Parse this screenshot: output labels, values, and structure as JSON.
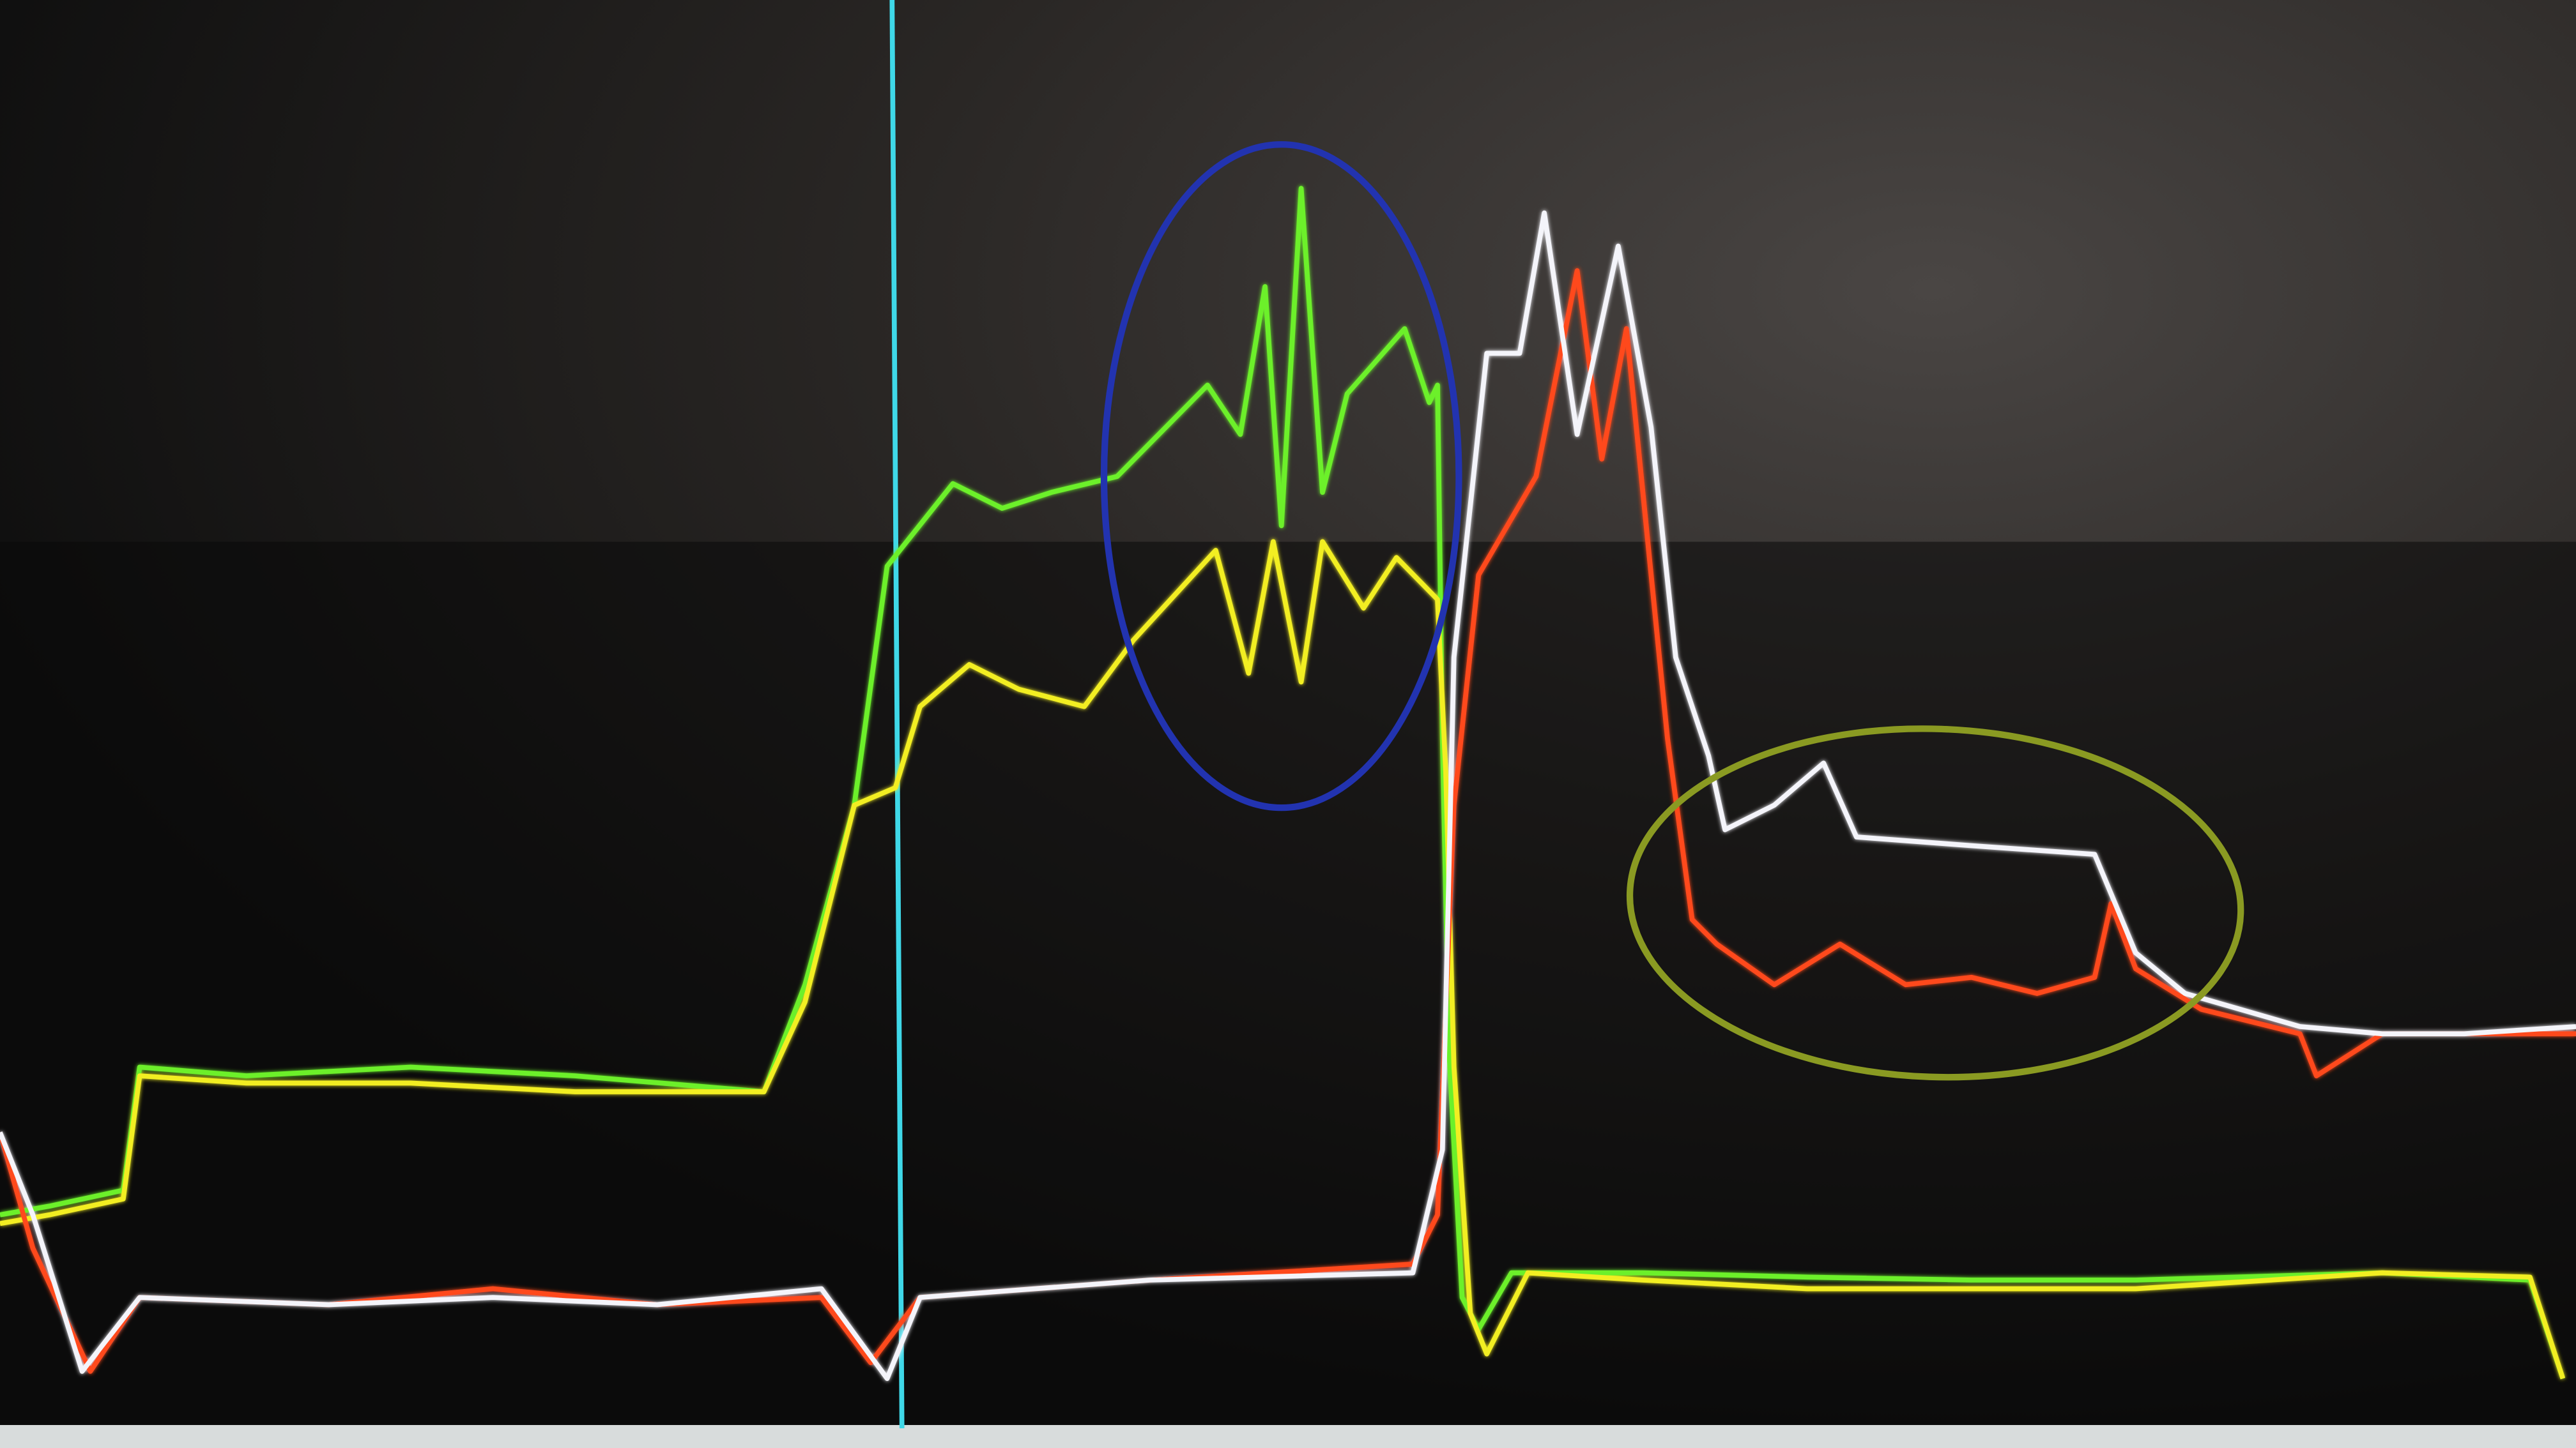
{
  "chart_data": {
    "type": "line",
    "xlim": [
      0,
      1568
    ],
    "ylim": [
      0,
      100
    ],
    "series": [
      {
        "name": "green",
        "color": "#6cf02a",
        "x": [
          0,
          30,
          75,
          85,
          150,
          250,
          350,
          465,
          490,
          520,
          540,
          580,
          610,
          640,
          680,
          735,
          755,
          770,
          780,
          792,
          805,
          820,
          855,
          870,
          875,
          878,
          882,
          890,
          900,
          920,
          1000,
          1100,
          1200,
          1300,
          1450,
          1540,
          1560
        ],
        "values": [
          16.1,
          16.7,
          17.8,
          26.3,
          25.7,
          26.3,
          25.7,
          24.6,
          32.0,
          44.4,
          60.9,
          66.6,
          64.9,
          66.0,
          67.1,
          73.4,
          70.0,
          80.2,
          63.7,
          87.0,
          66.0,
          72.8,
          77.3,
          72.2,
          73.4,
          49.0,
          27.4,
          10.4,
          8.2,
          12.1,
          12.1,
          11.8,
          11.6,
          11.6,
          12.1,
          11.6,
          4.8
        ]
      },
      {
        "name": "yellow",
        "color": "#f2ee22",
        "x": [
          0,
          30,
          75,
          85,
          150,
          250,
          350,
          465,
          490,
          520,
          545,
          560,
          590,
          620,
          660,
          690,
          740,
          760,
          775,
          792,
          805,
          830,
          850,
          875,
          880,
          885,
          895,
          905,
          930,
          1000,
          1100,
          1200,
          1300,
          1450,
          1540,
          1560
        ],
        "values": [
          15.5,
          16.1,
          17.2,
          25.7,
          25.2,
          25.2,
          24.6,
          24.6,
          30.8,
          44.4,
          45.6,
          51.2,
          54.1,
          52.4,
          51.2,
          55.8,
          62.0,
          53.5,
          62.6,
          52.9,
          62.6,
          58.0,
          61.5,
          58.6,
          46.7,
          26.3,
          9.3,
          6.5,
          12.1,
          11.6,
          11.0,
          11.0,
          11.0,
          12.1,
          11.8,
          4.8
        ]
      },
      {
        "name": "orange",
        "color": "#ff4a1c",
        "x": [
          0,
          20,
          55,
          85,
          200,
          300,
          400,
          500,
          530,
          560,
          700,
          860,
          875,
          885,
          900,
          935,
          960,
          975,
          990,
          1000,
          1015,
          1030,
          1045,
          1080,
          1120,
          1160,
          1200,
          1240,
          1275,
          1285,
          1300,
          1340,
          1400,
          1410,
          1450,
          1500,
          1568
        ],
        "values": [
          21.8,
          13.8,
          5.3,
          10.4,
          9.9,
          11.0,
          9.9,
          10.4,
          5.9,
          10.4,
          11.6,
          12.7,
          16.1,
          44.4,
          60.3,
          67.1,
          81.3,
          68.3,
          77.3,
          66.0,
          49.0,
          36.5,
          34.8,
          32.0,
          34.8,
          32.0,
          32.5,
          31.4,
          32.5,
          37.6,
          33.1,
          30.3,
          28.6,
          25.7,
          28.6,
          28.6,
          28.6
        ]
      },
      {
        "name": "white",
        "color": "#f4f4fa",
        "x": [
          0,
          20,
          50,
          85,
          200,
          300,
          400,
          500,
          540,
          560,
          700,
          860,
          878,
          885,
          905,
          925,
          940,
          960,
          985,
          1005,
          1020,
          1040,
          1050,
          1080,
          1110,
          1130,
          1200,
          1275,
          1300,
          1330,
          1400,
          1450,
          1500,
          1568
        ],
        "values": [
          21.8,
          16.1,
          5.3,
          10.4,
          9.9,
          10.4,
          9.9,
          11.0,
          4.8,
          10.4,
          11.6,
          12.1,
          20.6,
          54.6,
          75.6,
          75.6,
          85.3,
          70.0,
          83.0,
          70.5,
          54.6,
          47.8,
          42.7,
          44.4,
          47.3,
          42.2,
          41.6,
          41.0,
          34.2,
          31.4,
          29.1,
          28.6,
          28.6,
          29.1
        ]
      }
    ]
  }
}
